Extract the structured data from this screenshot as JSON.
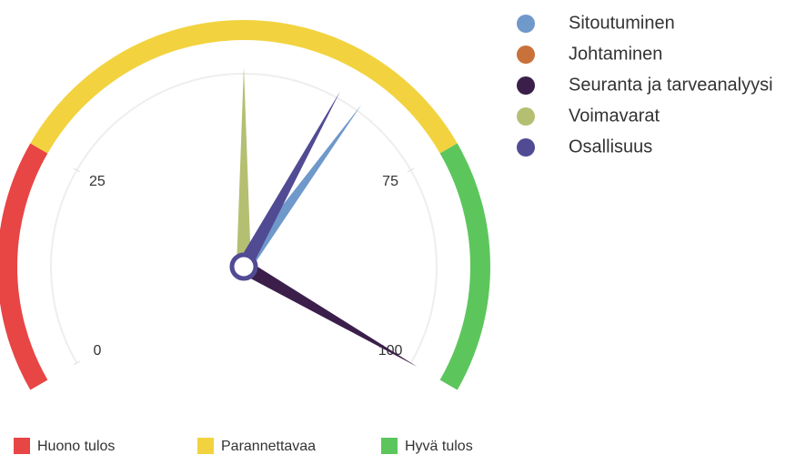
{
  "chart_data": {
    "type": "gauge",
    "ylim": [
      0,
      100
    ],
    "yticks": [
      0,
      25,
      75,
      100
    ],
    "bands": [
      {
        "name": "Huono tulos",
        "color": "#e84545",
        "from": 0,
        "to": 25
      },
      {
        "name": "Parannettavaa",
        "color": "#f2d33f",
        "from": 25,
        "to": 75
      },
      {
        "name": "Hyvä tulos",
        "color": "#5cc65c",
        "from": 75,
        "to": 100
      }
    ],
    "series": [
      {
        "name": "Sitoutuminen",
        "color": "#6f98cb",
        "values": [
          65
        ]
      },
      {
        "name": "Johtaminen",
        "color": "#c8713a",
        "values": [
          null
        ]
      },
      {
        "name": "Seuranta ja tarveanalyysi",
        "color": "#3b1f4a",
        "values": [
          100
        ]
      },
      {
        "name": "Voimavarat",
        "color": "#b5bf72",
        "values": [
          50
        ]
      },
      {
        "name": "Osallisuus",
        "color": "#514b94",
        "values": [
          62
        ]
      }
    ]
  }
}
